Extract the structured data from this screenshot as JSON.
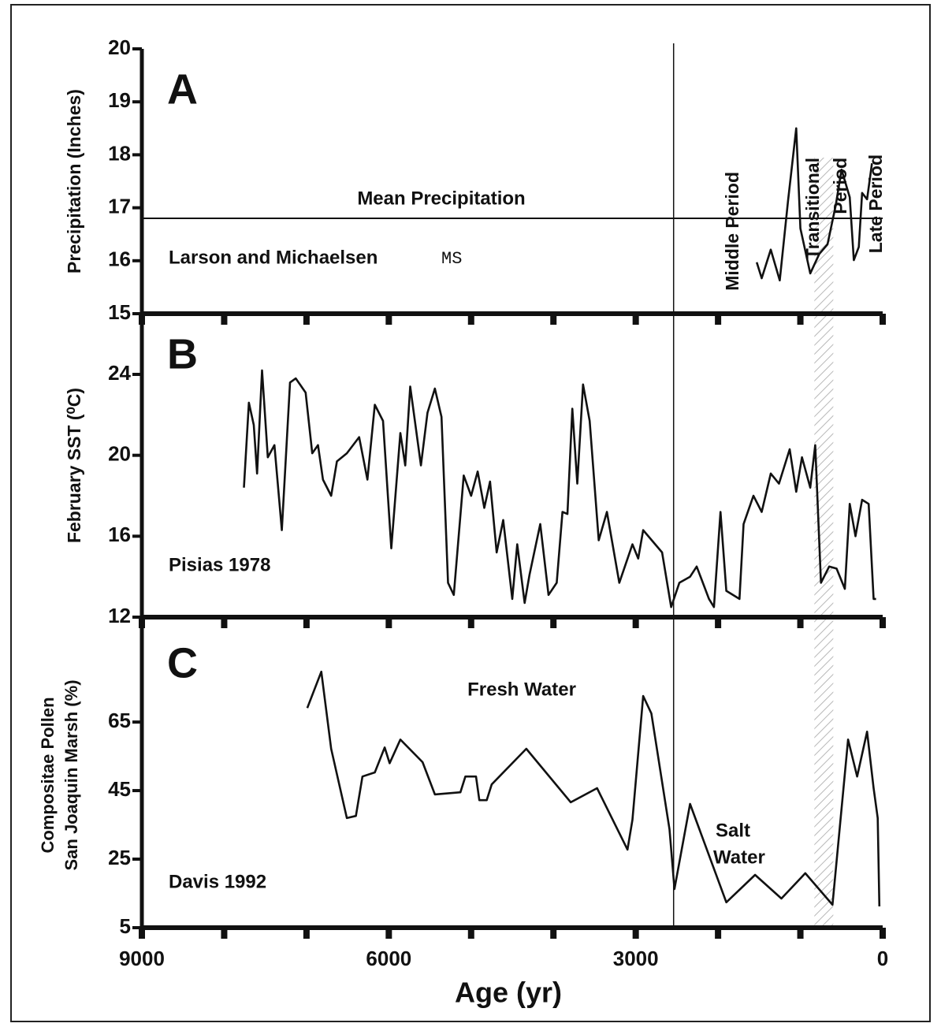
{
  "chart_data": [
    {
      "type": "line",
      "panel": "A",
      "ylabel": "Precipitation (Inches)",
      "xlim": [
        9000,
        0
      ],
      "ylim": [
        15,
        20
      ],
      "yticks": [
        15,
        16,
        17,
        18,
        19,
        20
      ],
      "hline": 16.8,
      "hline_label": "Mean Precipitation",
      "source": "Larson and Michaelsen",
      "source_suffix": "MS",
      "vline": 2540,
      "shaded_band": [
        830,
        600
      ],
      "period_labels": {
        "middle": "Middle Period",
        "transitional": [
          "Transitional",
          "Period"
        ],
        "late": "Late Period"
      },
      "color": "#111111",
      "x": [
        1530,
        1470,
        1360,
        1250,
        1150,
        1050,
        1000,
        880,
        770,
        670,
        570,
        500,
        400,
        350,
        290,
        250,
        190,
        130
      ],
      "values": [
        15.97,
        15.67,
        16.21,
        15.63,
        17.13,
        18.5,
        16.61,
        15.76,
        16.13,
        16.31,
        17.05,
        17.72,
        17.2,
        16.01,
        16.26,
        17.28,
        17.16,
        17.84
      ]
    },
    {
      "type": "line",
      "panel": "B",
      "ylabel": "February SST (⁰C)",
      "xlim": [
        9000,
        0
      ],
      "ylim": [
        12,
        27
      ],
      "yticks": [
        12,
        16,
        20,
        24
      ],
      "source": "Pisias 1978",
      "color": "#111111",
      "x": [
        7760,
        7700,
        7640,
        7600,
        7540,
        7470,
        7390,
        7300,
        7200,
        7130,
        7010,
        6930,
        6860,
        6800,
        6700,
        6630,
        6510,
        6360,
        6260,
        6170,
        6070,
        5970,
        5860,
        5800,
        5740,
        5610,
        5530,
        5440,
        5360,
        5280,
        5210,
        5090,
        5000,
        4920,
        4840,
        4770,
        4690,
        4610,
        4500,
        4440,
        4350,
        4290,
        4160,
        4060,
        3960,
        3890,
        3830,
        3770,
        3710,
        3640,
        3560,
        3450,
        3350,
        3200,
        3040,
        2970,
        2910,
        2680,
        2570,
        2470,
        2340,
        2260,
        2110,
        2050,
        1970,
        1900,
        1740,
        1690,
        1570,
        1470,
        1360,
        1260,
        1130,
        1050,
        980,
        880,
        820,
        750,
        650,
        560,
        460,
        400,
        330,
        250,
        170,
        110,
        80
      ],
      "values": [
        18.4,
        22.6,
        21.5,
        19.1,
        24.2,
        19.9,
        20.5,
        16.3,
        23.6,
        23.8,
        23.1,
        20.1,
        20.5,
        18.8,
        18.0,
        19.7,
        20.1,
        20.9,
        18.8,
        22.5,
        21.7,
        15.4,
        21.1,
        19.5,
        23.4,
        19.5,
        22.1,
        23.3,
        21.9,
        13.7,
        13.1,
        19.0,
        18.0,
        19.2,
        17.4,
        18.7,
        15.2,
        16.8,
        12.9,
        15.6,
        12.7,
        14.1,
        16.6,
        13.1,
        13.7,
        17.2,
        17.1,
        22.3,
        18.6,
        23.5,
        21.7,
        15.8,
        17.2,
        13.7,
        15.6,
        14.9,
        16.3,
        15.2,
        12.5,
        13.7,
        14.0,
        14.5,
        12.9,
        12.5,
        17.2,
        13.3,
        12.9,
        16.6,
        18.0,
        17.2,
        19.1,
        18.6,
        20.3,
        18.2,
        19.9,
        18.4,
        20.5,
        13.7,
        14.5,
        14.4,
        13.4,
        17.6,
        16.0,
        17.8,
        17.6,
        12.9,
        12.9
      ]
    },
    {
      "type": "line",
      "panel": "C",
      "ylabel": [
        "Compositae Pollen",
        "San Joaquin Marsh (%)"
      ],
      "xlim": [
        9000,
        0
      ],
      "ylim": [
        5,
        94
      ],
      "yticks": [
        5,
        25,
        45,
        65
      ],
      "xticks": [
        9000,
        6000,
        3000,
        0
      ],
      "minor_xticks": [
        8000,
        7000,
        5000,
        4000,
        2000,
        1000
      ],
      "xlabel": "Age (yr)",
      "source": "Davis 1992",
      "notes": {
        "fresh": "Fresh Water",
        "salt": [
          "Salt",
          "Water"
        ]
      },
      "color": "#111111",
      "x": [
        6990,
        6820,
        6700,
        6510,
        6400,
        6320,
        6170,
        6050,
        5990,
        5860,
        5590,
        5440,
        5130,
        5070,
        4940,
        4900,
        4810,
        4750,
        4330,
        3790,
        3470,
        3100,
        3040,
        2910,
        2810,
        2590,
        2530,
        2340,
        1900,
        1550,
        1230,
        940,
        610,
        420,
        310,
        190,
        110,
        60,
        40
      ],
      "values": [
        69.1,
        79.7,
        57.2,
        37.0,
        37.6,
        49.1,
        50.3,
        57.6,
        53.0,
        59.9,
        53.3,
        43.9,
        44.5,
        49.1,
        49.1,
        42.2,
        42.2,
        46.8,
        57.2,
        41.6,
        45.7,
        27.8,
        36.5,
        72.6,
        67.5,
        33.7,
        16.3,
        41.1,
        12.4,
        20.4,
        13.5,
        20.9,
        11.7,
        59.9,
        49.1,
        62.2,
        45.7,
        37.0,
        11.2
      ]
    }
  ]
}
